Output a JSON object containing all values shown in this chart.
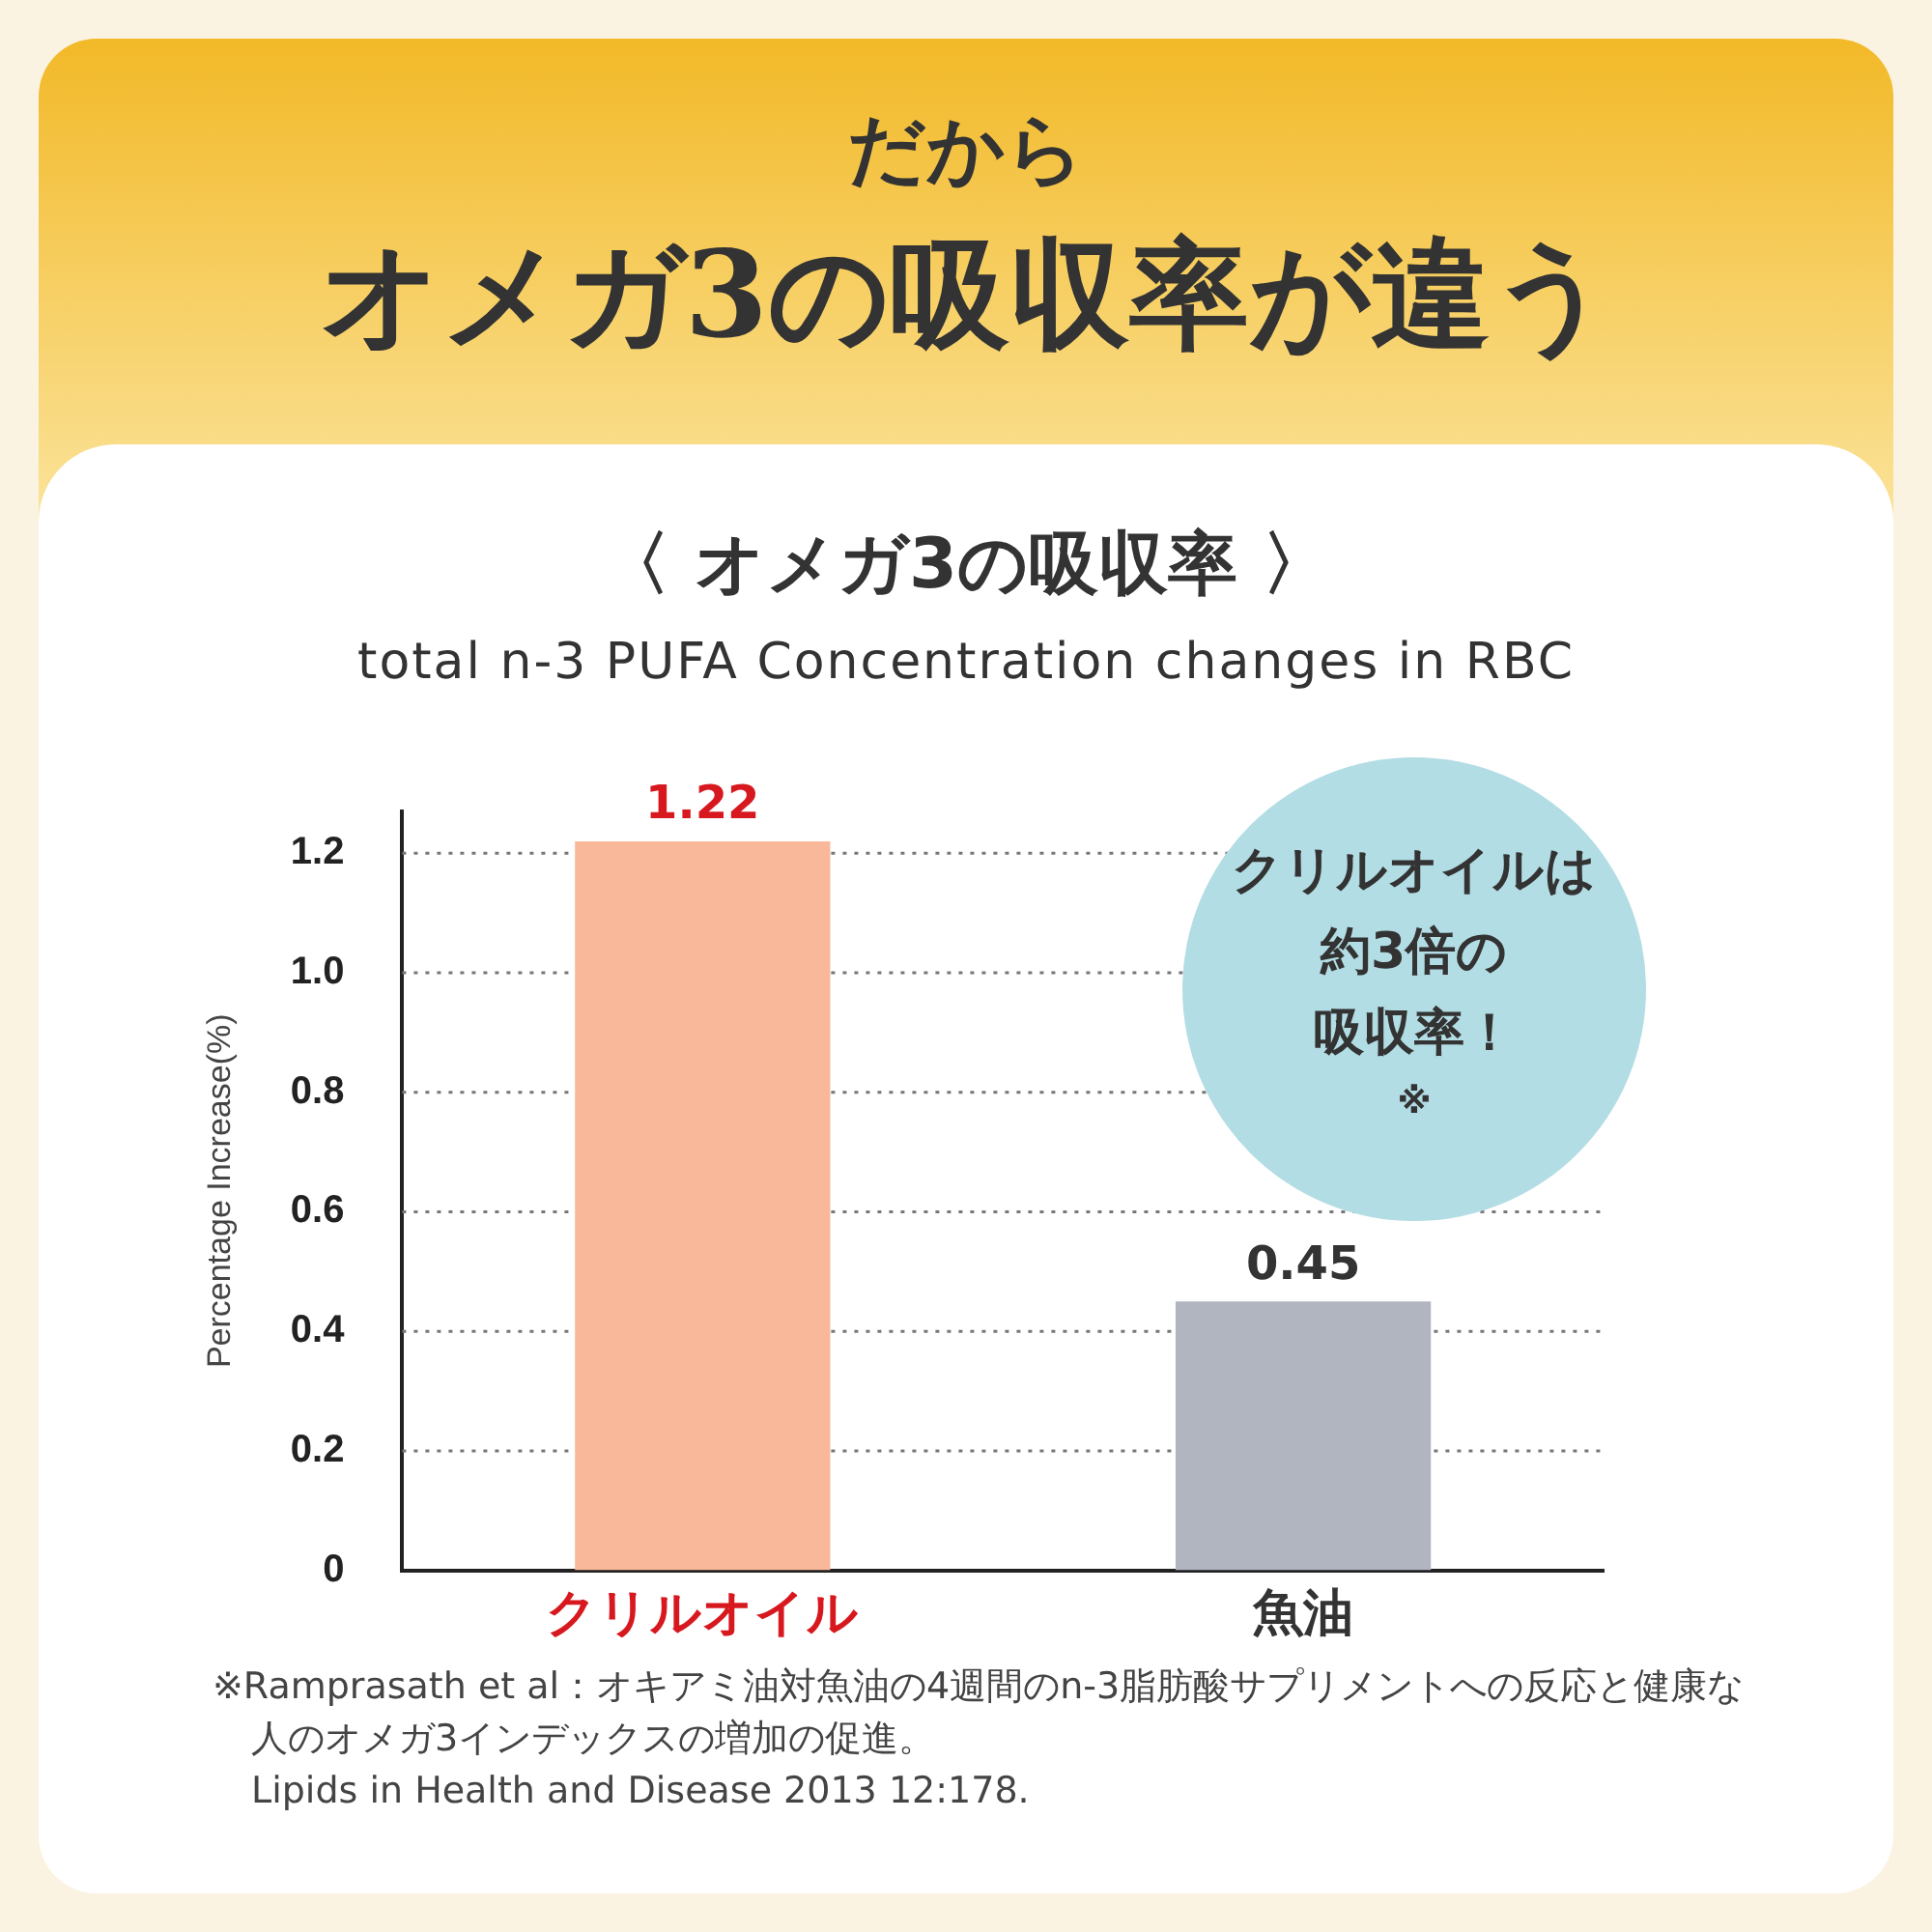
{
  "chart_data": {
    "type": "bar",
    "title": "オメガ3の吸収率が違う",
    "subtitle": "〈 オメガ3の吸収率 〉",
    "ylabel": "Percentage Increase(%)",
    "categories": [
      "クリルオイル",
      "魚油"
    ],
    "values": [
      1.22,
      0.45
    ],
    "colors": [
      "#f9b89a",
      "#b0b5c0"
    ],
    "ylim": [
      0,
      1.27
    ],
    "yticks": [
      0,
      0.2,
      0.4,
      0.6,
      0.8,
      {
        "value": 1,
        "label": "1.0"
      },
      1.2
    ],
    "grid": "y",
    "data_labels": true,
    "annotations": [
      "だから",
      "total n-3 PUFA Concentration changes in RBC",
      "クリルオイルは",
      "約3倍の",
      "吸収率！",
      "※",
      "※Ramprasath et al：オキアミ油対魚油の4週間のn-3脂肪酸サプリメントへの反応と健康な人のオメガ3インデックスの増加の促進。",
      "Lipids in Health and Disease 2013 12:178."
    ]
  }
}
